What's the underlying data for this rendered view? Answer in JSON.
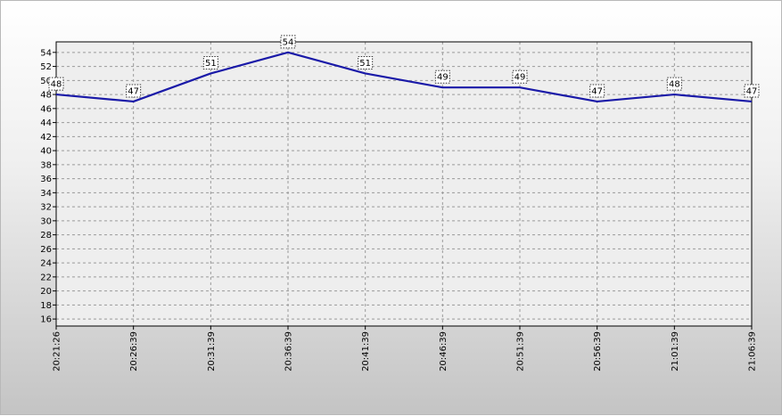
{
  "chart_data": {
    "type": "line",
    "title": "",
    "xlabel": "",
    "ylabel": "",
    "categories": [
      "20:21:26",
      "20:26:39",
      "20:31:39",
      "20:36:39",
      "20:41:39",
      "20:46:39",
      "20:51:39",
      "20:56:39",
      "21:01:39",
      "21:06:39"
    ],
    "series": [
      {
        "values": [
          48,
          47,
          51,
          54,
          51,
          49,
          49,
          47,
          48,
          47
        ],
        "color": "#1a1aa8"
      }
    ],
    "ylim": [
      15,
      55.5
    ],
    "yticks": [
      16,
      18,
      20,
      22,
      24,
      26,
      28,
      30,
      32,
      34,
      36,
      38,
      40,
      42,
      44,
      46,
      48,
      50,
      52,
      54
    ],
    "grid": true,
    "grid_style": "dashed",
    "data_labels": true,
    "legend": "none"
  }
}
